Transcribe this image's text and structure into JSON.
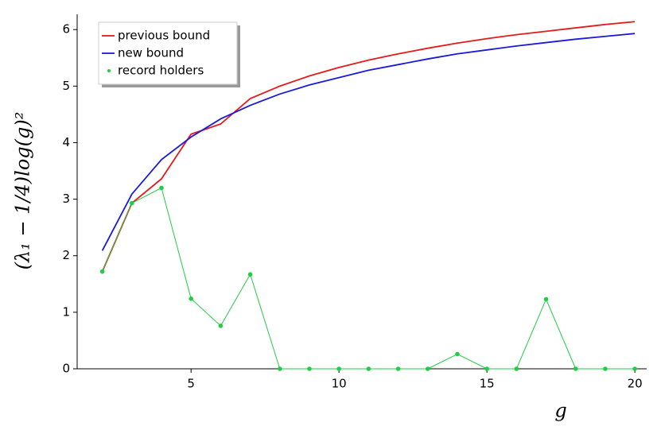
{
  "chart_data": {
    "type": "line",
    "xlabel": "g",
    "ylabel": "(λ₁ − 1/4)log(g)²",
    "x": [
      2,
      3,
      4,
      5,
      6,
      7,
      8,
      9,
      10,
      11,
      12,
      13,
      14,
      15,
      16,
      17,
      18,
      19,
      20
    ],
    "series": [
      {
        "name": "previous bound",
        "color": "#e41a1c",
        "markers": false,
        "values": [
          1.72,
          2.93,
          3.36,
          4.15,
          4.33,
          4.78,
          5.0,
          5.18,
          5.33,
          5.46,
          5.57,
          5.67,
          5.76,
          5.84,
          5.91,
          5.97,
          6.03,
          6.09,
          6.14
        ]
      },
      {
        "name": "new bound",
        "color": "#1a1adc",
        "markers": false,
        "values": [
          2.09,
          3.09,
          3.7,
          4.1,
          4.42,
          4.66,
          4.86,
          5.02,
          5.15,
          5.28,
          5.38,
          5.48,
          5.57,
          5.64,
          5.71,
          5.77,
          5.83,
          5.88,
          5.93
        ]
      },
      {
        "name": "record holders",
        "color": "#22cc44",
        "markers": true,
        "values": [
          1.72,
          2.93,
          3.2,
          1.24,
          0.76,
          1.67,
          0,
          0,
          0,
          0,
          0,
          0,
          0.26,
          0,
          0,
          1.23,
          0,
          0,
          0
        ]
      }
    ],
    "xlim": [
      1.15,
      20.4
    ],
    "ylim": [
      0,
      6.27
    ],
    "xticks": [
      5,
      10,
      15,
      20
    ],
    "yticks": [
      0,
      1,
      2,
      3,
      4,
      5,
      6
    ],
    "legend": "upper-left"
  }
}
